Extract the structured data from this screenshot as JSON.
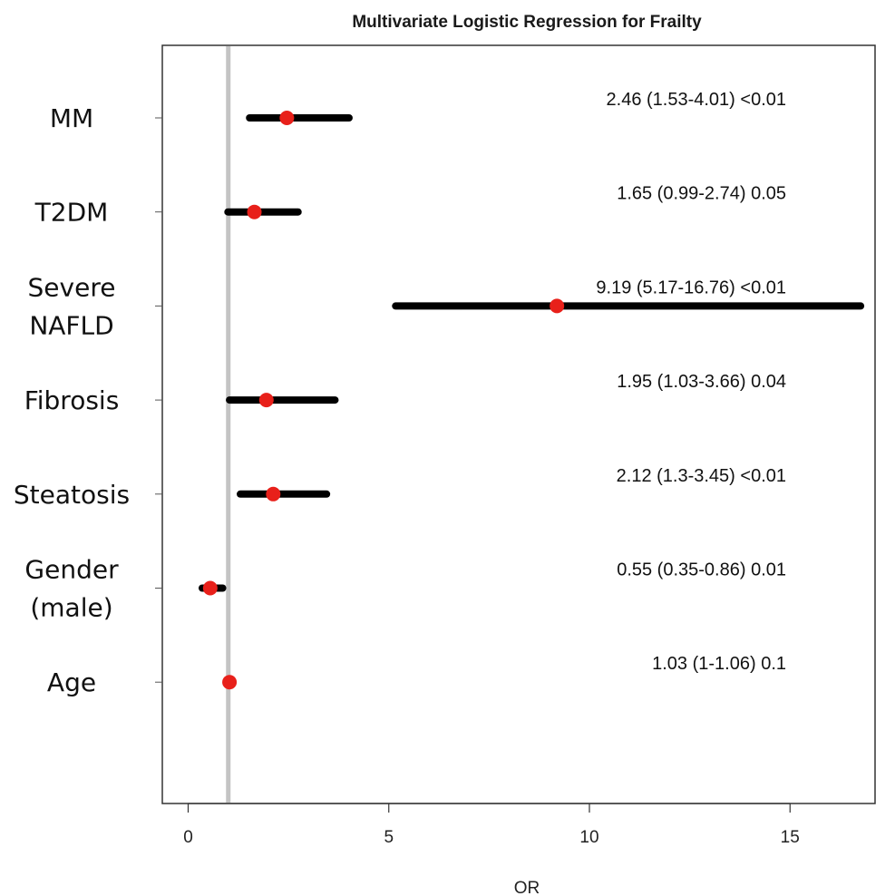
{
  "chart_data": {
    "type": "forest",
    "title": "Multivariate Logistic Regression for Frailty",
    "xlabel": "OR",
    "xlim": [
      -0.7,
      17.5
    ],
    "xticks": [
      0,
      5,
      10,
      15
    ],
    "reference_line": 1,
    "rows": [
      {
        "label_lines": [
          "MM"
        ],
        "or": 2.46,
        "ci": [
          1.53,
          4.01
        ],
        "annotation": "2.46 (1.53-4.01) <0.01"
      },
      {
        "label_lines": [
          "T2DM"
        ],
        "or": 1.65,
        "ci": [
          0.99,
          2.74
        ],
        "annotation": "1.65 (0.99-2.74) 0.05"
      },
      {
        "label_lines": [
          "Severe",
          "NAFLD"
        ],
        "or": 9.19,
        "ci": [
          5.17,
          16.76
        ],
        "annotation": "9.19 (5.17-16.76) <0.01"
      },
      {
        "label_lines": [
          "Fibrosis"
        ],
        "or": 1.95,
        "ci": [
          1.03,
          3.66
        ],
        "annotation": "1.95 (1.03-3.66) 0.04"
      },
      {
        "label_lines": [
          "Steatosis"
        ],
        "or": 2.12,
        "ci": [
          1.3,
          3.45
        ],
        "annotation": "2.12 (1.3-3.45) <0.01"
      },
      {
        "label_lines": [
          "Gender",
          "(male)"
        ],
        "or": 0.55,
        "ci": [
          0.35,
          0.86
        ],
        "annotation": "0.55 (0.35-0.86) 0.01"
      },
      {
        "label_lines": [
          "Age"
        ],
        "or": 1.03,
        "ci": [
          1.0,
          1.06
        ],
        "annotation": "1.03 (1-1.06) 0.1"
      }
    ],
    "colors": {
      "point": "#e8201a",
      "ci_line": "#000000",
      "reference_line": "#c4c4c4",
      "frame": "#333333"
    }
  }
}
